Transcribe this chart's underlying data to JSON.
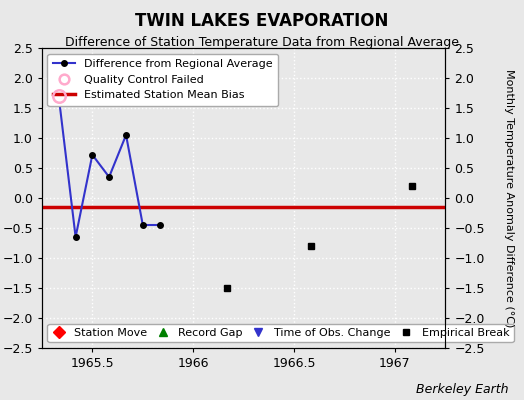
{
  "title": "TWIN LAKES EVAPORATION",
  "subtitle": "Difference of Station Temperature Data from Regional Average",
  "ylabel_right": "Monthly Temperature Anomaly Difference (°C)",
  "xlim": [
    1965.25,
    1967.25
  ],
  "ylim": [
    -2.5,
    2.5
  ],
  "yticks": [
    -2.5,
    -2,
    -1.5,
    -1,
    -0.5,
    0,
    0.5,
    1,
    1.5,
    2,
    2.5
  ],
  "xticks": [
    1965.5,
    1966,
    1966.5,
    1967
  ],
  "xticklabels": [
    "1965.5",
    "1966",
    "1966.5",
    "1967"
  ],
  "background_color": "#e8e8e8",
  "grid_color": "white",
  "line_x": [
    1965.333,
    1965.417,
    1965.5,
    1965.583,
    1965.667,
    1965.75,
    1965.833
  ],
  "line_y": [
    1.7,
    -0.65,
    0.72,
    0.35,
    1.05,
    -0.45,
    -0.45
  ],
  "qc_fail_x": [
    1965.333
  ],
  "qc_fail_y": [
    1.7
  ],
  "isolated_points_x": [
    1966.167,
    1966.583,
    1967.083
  ],
  "isolated_points_y": [
    -1.5,
    -0.8,
    0.2
  ],
  "bias_line_y": -0.15,
  "bias_color": "#cc0000",
  "line_color": "#3333cc",
  "title_fontsize": 12,
  "subtitle_fontsize": 9,
  "watermark": "Berkeley Earth",
  "watermark_fontsize": 9,
  "legend1_fontsize": 8,
  "legend2_fontsize": 8
}
